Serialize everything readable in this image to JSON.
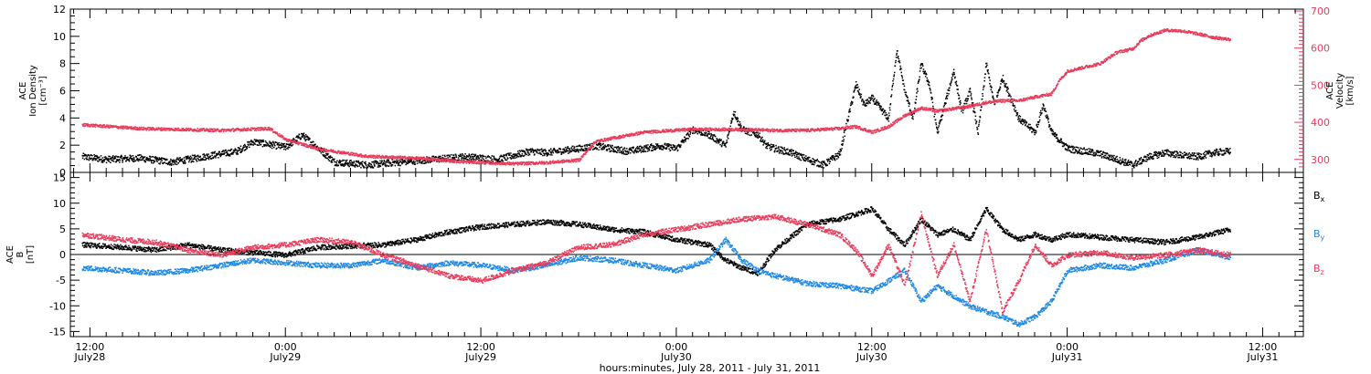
{
  "chart_data": [
    {
      "type": "scatter",
      "panel": "top",
      "ylabel_lines": [
        "ACE",
        "Ion Density",
        "[cm⁻³]"
      ],
      "ylim": [
        0,
        12
      ],
      "yticks": [
        0,
        2,
        4,
        6,
        8,
        10,
        12
      ],
      "y2label_lines": [
        "ACE",
        "Velocity",
        "[km/s]"
      ],
      "y2lim": [
        265,
        705
      ],
      "y2ticks": [
        300,
        400,
        500,
        600,
        700
      ],
      "series": [
        {
          "axis": "left",
          "color": "#000000",
          "points": [
            [
              -0.5,
              1.2
            ],
            [
              1,
              1.0
            ],
            [
              3,
              1.1
            ],
            [
              5,
              0.8
            ],
            [
              7,
              1.2
            ],
            [
              9,
              1.6
            ],
            [
              10,
              2.3
            ],
            [
              12,
              1.9
            ],
            [
              13,
              2.8
            ],
            [
              14,
              1.8
            ],
            [
              15,
              0.8
            ],
            [
              17,
              0.6
            ],
            [
              19,
              0.8
            ],
            [
              21,
              1.0
            ],
            [
              23,
              1.2
            ],
            [
              25,
              1.0
            ],
            [
              27,
              1.6
            ],
            [
              28,
              1.5
            ],
            [
              30,
              1.8
            ],
            [
              31,
              2.0
            ],
            [
              33,
              1.6
            ],
            [
              35,
              2.0
            ],
            [
              36,
              1.8
            ],
            [
              37,
              3.2
            ],
            [
              38,
              2.8
            ],
            [
              39,
              2.0
            ],
            [
              39.5,
              4.5
            ],
            [
              40,
              3.2
            ],
            [
              41,
              2.8
            ],
            [
              41.5,
              2.0
            ],
            [
              42,
              1.8
            ],
            [
              43,
              1.5
            ],
            [
              44,
              1.0
            ],
            [
              45,
              0.6
            ],
            [
              46,
              1.4
            ],
            [
              46.5,
              4.0
            ],
            [
              47,
              6.5
            ],
            [
              47.5,
              5.0
            ],
            [
              48,
              5.5
            ],
            [
              49,
              4.0
            ],
            [
              49.5,
              9.0
            ],
            [
              50,
              6.0
            ],
            [
              50.5,
              4.0
            ],
            [
              51,
              8.0
            ],
            [
              51.5,
              6.5
            ],
            [
              52,
              3.0
            ],
            [
              53,
              7.5
            ],
            [
              53.5,
              4.5
            ],
            [
              54,
              6.0
            ],
            [
              54.5,
              3.0
            ],
            [
              55,
              8.0
            ],
            [
              55.5,
              5.0
            ],
            [
              56,
              7.0
            ],
            [
              56.5,
              5.5
            ],
            [
              57,
              4.0
            ],
            [
              57.5,
              3.5
            ],
            [
              58,
              3.0
            ],
            [
              58.5,
              5.0
            ],
            [
              59,
              3.0
            ],
            [
              60,
              1.8
            ],
            [
              61,
              1.6
            ],
            [
              62,
              1.4
            ],
            [
              63,
              1.0
            ],
            [
              64,
              0.6
            ],
            [
              65,
              1.2
            ],
            [
              66,
              1.5
            ],
            [
              67,
              1.3
            ],
            [
              68,
              1.2
            ],
            [
              69,
              1.5
            ],
            [
              70,
              1.6
            ]
          ]
        },
        {
          "axis": "right",
          "color": "#e83d5c",
          "points": [
            [
              -0.5,
              395
            ],
            [
              3,
              385
            ],
            [
              8,
              380
            ],
            [
              11,
              385
            ],
            [
              12,
              355
            ],
            [
              14,
              330
            ],
            [
              17,
              310
            ],
            [
              20,
              305
            ],
            [
              23,
              295
            ],
            [
              26,
              290
            ],
            [
              28,
              293
            ],
            [
              30,
              300
            ],
            [
              31,
              350
            ],
            [
              34,
              375
            ],
            [
              37,
              383
            ],
            [
              40,
              382
            ],
            [
              42,
              380
            ],
            [
              44,
              380
            ],
            [
              46,
              385
            ],
            [
              47,
              390
            ],
            [
              48,
              375
            ],
            [
              49,
              390
            ],
            [
              50,
              420
            ],
            [
              51,
              440
            ],
            [
              52,
              432
            ],
            [
              54,
              445
            ],
            [
              55,
              455
            ],
            [
              56,
              460
            ],
            [
              57,
              460
            ],
            [
              58,
              470
            ],
            [
              59,
              478
            ],
            [
              59.5,
              515
            ],
            [
              60,
              540
            ],
            [
              61,
              550
            ],
            [
              62,
              560
            ],
            [
              63,
              590
            ],
            [
              64,
              600
            ],
            [
              64.5,
              622
            ],
            [
              65,
              635
            ],
            [
              66,
              650
            ],
            [
              67,
              648
            ],
            [
              68,
              640
            ],
            [
              69,
              630
            ],
            [
              70,
              625
            ]
          ]
        }
      ]
    },
    {
      "type": "scatter",
      "panel": "bottom",
      "ylabel_lines": [
        "ACE",
        "B",
        "[nT]"
      ],
      "ylim": [
        -16,
        16
      ],
      "yticks": [
        -15,
        -10,
        -5,
        0,
        5,
        10,
        15
      ],
      "zero_line": true,
      "series": [
        {
          "name_base": "B",
          "name_sub": "x",
          "color": "#000000",
          "points": [
            [
              -0.5,
              2.0
            ],
            [
              2,
              1.5
            ],
            [
              4,
              1.0
            ],
            [
              6,
              2.0
            ],
            [
              8,
              1.0
            ],
            [
              10,
              0.5
            ],
            [
              12,
              0.0
            ],
            [
              14,
              1.5
            ],
            [
              16,
              1.8
            ],
            [
              18,
              2.0
            ],
            [
              20,
              3.0
            ],
            [
              22,
              4.5
            ],
            [
              24,
              5.5
            ],
            [
              26,
              6.0
            ],
            [
              28,
              6.5
            ],
            [
              30,
              6.0
            ],
            [
              32,
              5.0
            ],
            [
              34,
              4.5
            ],
            [
              36,
              3.0
            ],
            [
              38,
              2.0
            ],
            [
              39,
              -1.0
            ],
            [
              40,
              -2.5
            ],
            [
              41,
              -3.5
            ],
            [
              42,
              1.0
            ],
            [
              44,
              6.0
            ],
            [
              46,
              7.0
            ],
            [
              47,
              8.0
            ],
            [
              48,
              9.0
            ],
            [
              49,
              5.0
            ],
            [
              50,
              2.0
            ],
            [
              51,
              7.0
            ],
            [
              52,
              4.0
            ],
            [
              53,
              5.0
            ],
            [
              54,
              3.0
            ],
            [
              55,
              9.0
            ],
            [
              56,
              5.0
            ],
            [
              57,
              3.0
            ],
            [
              58,
              4.0
            ],
            [
              59,
              3.0
            ],
            [
              60,
              4.0
            ],
            [
              62,
              3.5
            ],
            [
              64,
              3.0
            ],
            [
              66,
              2.5
            ],
            [
              68,
              3.5
            ],
            [
              70,
              5.0
            ]
          ]
        },
        {
          "name_base": "B",
          "name_sub": "y",
          "color": "#1e88e5",
          "points": [
            [
              -0.5,
              -2.5
            ],
            [
              2,
              -3.0
            ],
            [
              4,
              -3.5
            ],
            [
              6,
              -3.0
            ],
            [
              8,
              -2.0
            ],
            [
              10,
              -1.0
            ],
            [
              12,
              -1.5
            ],
            [
              14,
              -2.0
            ],
            [
              16,
              -2.0
            ],
            [
              18,
              -1.0
            ],
            [
              20,
              -2.5
            ],
            [
              22,
              -1.5
            ],
            [
              24,
              -2.0
            ],
            [
              26,
              -3.0
            ],
            [
              28,
              -2.0
            ],
            [
              30,
              -0.5
            ],
            [
              32,
              -1.0
            ],
            [
              34,
              -2.0
            ],
            [
              36,
              -3.0
            ],
            [
              38,
              -1.0
            ],
            [
              39,
              3.0
            ],
            [
              40,
              -1.0
            ],
            [
              41,
              -3.0
            ],
            [
              42,
              -4.0
            ],
            [
              44,
              -5.5
            ],
            [
              46,
              -6.0
            ],
            [
              48,
              -7.0
            ],
            [
              49,
              -5.0
            ],
            [
              50,
              -3.0
            ],
            [
              51,
              -9.0
            ],
            [
              52,
              -6.0
            ],
            [
              53,
              -8.0
            ],
            [
              54,
              -10.0
            ],
            [
              55,
              -11.0
            ],
            [
              56,
              -12.0
            ],
            [
              57,
              -13.5
            ],
            [
              58,
              -12.0
            ],
            [
              59,
              -9.0
            ],
            [
              60,
              -3.0
            ],
            [
              62,
              -2.0
            ],
            [
              64,
              -2.5
            ],
            [
              66,
              -1.0
            ],
            [
              68,
              1.0
            ],
            [
              70,
              -0.5
            ]
          ]
        },
        {
          "name_base": "B",
          "name_sub": "z",
          "color": "#e83d5c",
          "points": [
            [
              -0.5,
              4.0
            ],
            [
              2,
              3.0
            ],
            [
              4,
              2.5
            ],
            [
              6,
              1.0
            ],
            [
              8,
              0.0
            ],
            [
              10,
              1.5
            ],
            [
              12,
              2.0
            ],
            [
              14,
              3.0
            ],
            [
              16,
              2.5
            ],
            [
              18,
              0.0
            ],
            [
              20,
              -2.0
            ],
            [
              22,
              -4.0
            ],
            [
              24,
              -5.0
            ],
            [
              26,
              -3.0
            ],
            [
              28,
              -1.5
            ],
            [
              30,
              1.5
            ],
            [
              32,
              2.0
            ],
            [
              34,
              4.0
            ],
            [
              36,
              5.0
            ],
            [
              38,
              6.0
            ],
            [
              40,
              7.0
            ],
            [
              42,
              7.5
            ],
            [
              44,
              6.0
            ],
            [
              46,
              4.0
            ],
            [
              47,
              1.0
            ],
            [
              48,
              -4.0
            ],
            [
              49,
              2.0
            ],
            [
              50,
              -6.0
            ],
            [
              51,
              8.0
            ],
            [
              52,
              -4.0
            ],
            [
              53,
              2.0
            ],
            [
              54,
              -9.0
            ],
            [
              55,
              5.0
            ],
            [
              56,
              -11.0
            ],
            [
              57,
              -5.0
            ],
            [
              58,
              2.0
            ],
            [
              59,
              -2.0
            ],
            [
              60,
              0.0
            ],
            [
              62,
              0.5
            ],
            [
              64,
              -0.5
            ],
            [
              66,
              0.0
            ],
            [
              68,
              1.0
            ],
            [
              70,
              0.0
            ]
          ]
        }
      ]
    }
  ],
  "x_axis": {
    "range_hours": [
      -1.2,
      74.5
    ],
    "tick_step_hours": 1,
    "major_hours": [
      0,
      12,
      24,
      36,
      48,
      60,
      72
    ],
    "labels": [
      {
        "hour": 0,
        "time": "12:00",
        "day": "July28"
      },
      {
        "hour": 12,
        "time": "0:00",
        "day": "July29"
      },
      {
        "hour": 24,
        "time": "12:00",
        "day": "July29"
      },
      {
        "hour": 36,
        "time": "0:00",
        "day": "July30"
      },
      {
        "hour": 48,
        "time": "12:00",
        "day": "July30"
      },
      {
        "hour": 60,
        "time": "0:00",
        "day": "July31"
      },
      {
        "hour": 72,
        "time": "12:00",
        "day": "July31"
      }
    ],
    "title": "hours:minutes, July 28, 2011 - July 31, 2011"
  }
}
